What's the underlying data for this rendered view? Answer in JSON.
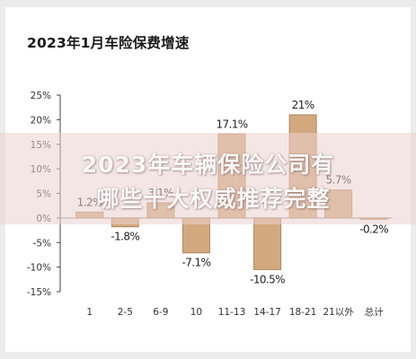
{
  "chart_data": {
    "type": "bar",
    "title": "2023年1月车险保费增速",
    "categories": [
      "1",
      "2-5",
      "6-9",
      "10",
      "11-13",
      "14-17",
      "18-21",
      "21以外",
      "总计"
    ],
    "values": [
      1.2,
      -1.8,
      3.1,
      -7.1,
      17.1,
      -10.5,
      21.0,
      5.7,
      -0.2
    ],
    "data_labels": [
      "1.2%",
      "-1.8%",
      "3.1%",
      "-7.1%",
      "17.1%",
      "-10.5%",
      "21%",
      "5.7%",
      "-0.2%"
    ],
    "yticks": [
      "25%",
      "20%",
      "15%",
      "10%",
      "5%",
      "0%",
      "-5%",
      "-10%",
      "-15%"
    ],
    "ytick_values": [
      25,
      20,
      15,
      10,
      5,
      0,
      -5,
      -10,
      -15
    ],
    "ylim": [
      -15,
      25
    ],
    "bar_color": "#d2a87f",
    "bar_edge": "#b3875e",
    "grid": false
  },
  "watermark": {
    "line1": "2023年车辆保险公司有",
    "line2": "哪些十大权威推荐完整"
  }
}
